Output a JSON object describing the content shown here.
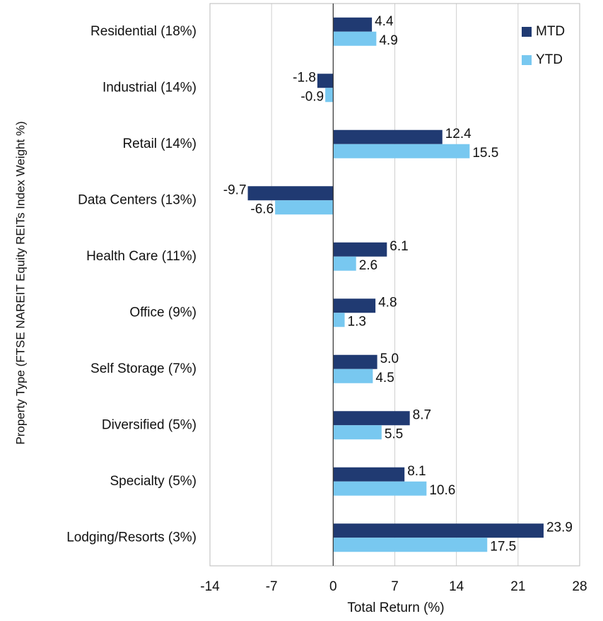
{
  "chart_data": {
    "type": "hbar",
    "categories": [
      "Residential (18%)",
      "Industrial (14%)",
      "Retail (14%)",
      "Data Centers (13%)",
      "Health Care (11%)",
      "Office (9%)",
      "Self Storage (7%)",
      "Diversified (5%)",
      "Specialty (5%)",
      "Lodging/Resorts (3%)"
    ],
    "series": [
      {
        "name": "MTD",
        "color": "#203a72",
        "values": [
          4.4,
          -1.8,
          12.4,
          -9.7,
          6.1,
          4.8,
          5.0,
          8.7,
          8.1,
          23.9
        ],
        "value_labels": [
          "4.4",
          "-1.8",
          "12.4",
          "-9.7",
          "6.1",
          "4.8",
          "5.0",
          "8.7",
          "8.1",
          "23.9"
        ]
      },
      {
        "name": "YTD",
        "color": "#78c8f0",
        "values": [
          4.9,
          -0.9,
          15.5,
          -6.6,
          2.6,
          1.3,
          4.5,
          5.5,
          10.6,
          17.5
        ]
      }
    ],
    "x_label": "Total Return (%)",
    "y_label": "Property Type (FTSE NAREIT Equity REITs Index Weight %)",
    "xlim": [
      -14,
      28
    ],
    "xticks": [
      -14,
      -7,
      0,
      7,
      14,
      21,
      28
    ],
    "grid": true,
    "legend": "upper right"
  }
}
